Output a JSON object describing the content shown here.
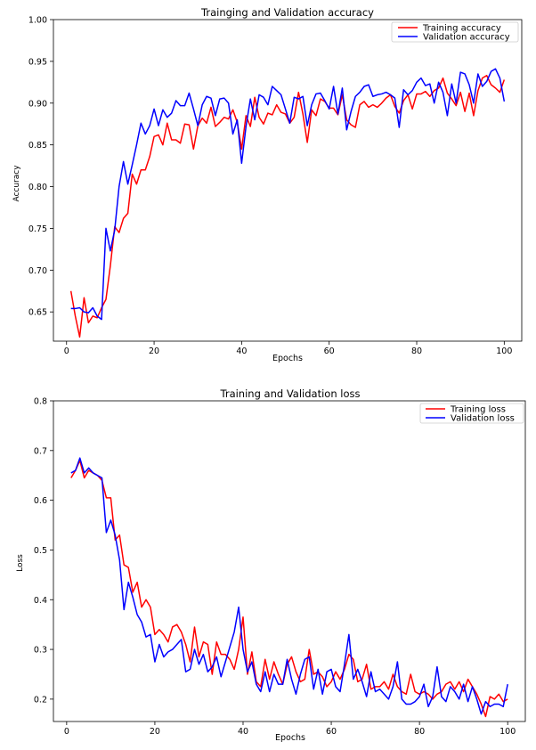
{
  "chart_data": [
    {
      "type": "line",
      "title": "Trainging and Validation accuracy",
      "xlabel": "Epochs",
      "ylabel": "Accuracy",
      "xlim": [
        -3,
        104
      ],
      "ylim": [
        0.615,
        1.0
      ],
      "x_ticks": [
        0,
        20,
        40,
        60,
        80,
        100
      ],
      "y_ticks": [
        0.65,
        0.7,
        0.75,
        0.8,
        0.85,
        0.9,
        0.95,
        1.0
      ],
      "x_tick_labels": [
        "0",
        "20",
        "40",
        "60",
        "80",
        "100"
      ],
      "y_tick_labels": [
        "0.65",
        "0.70",
        "0.75",
        "0.80",
        "0.85",
        "0.90",
        "0.95",
        "1.00"
      ],
      "grid": false,
      "legend_position": "top-right",
      "x": [
        1,
        2,
        3,
        4,
        5,
        6,
        7,
        8,
        9,
        10,
        11,
        12,
        13,
        14,
        15,
        16,
        17,
        18,
        19,
        20,
        21,
        22,
        23,
        24,
        25,
        26,
        27,
        28,
        29,
        30,
        31,
        32,
        33,
        34,
        35,
        36,
        37,
        38,
        39,
        40,
        41,
        42,
        43,
        44,
        45,
        46,
        47,
        48,
        49,
        50,
        51,
        52,
        53,
        54,
        55,
        56,
        57,
        58,
        59,
        60,
        61,
        62,
        63,
        64,
        65,
        66,
        67,
        68,
        69,
        70,
        71,
        72,
        73,
        74,
        75,
        76,
        77,
        78,
        79,
        80,
        81,
        82,
        83,
        84,
        85,
        86,
        87,
        88,
        89,
        90,
        91,
        92,
        93,
        94,
        95,
        96,
        97,
        98,
        99,
        100
      ],
      "series": [
        {
          "name": "Training accuracy",
          "color": "#ff0000",
          "values": [
            0.675,
            0.645,
            0.62,
            0.667,
            0.637,
            0.645,
            0.643,
            0.655,
            0.665,
            0.705,
            0.752,
            0.745,
            0.762,
            0.768,
            0.815,
            0.803,
            0.82,
            0.82,
            0.836,
            0.86,
            0.862,
            0.85,
            0.876,
            0.856,
            0.856,
            0.852,
            0.875,
            0.874,
            0.845,
            0.873,
            0.882,
            0.876,
            0.895,
            0.872,
            0.877,
            0.883,
            0.881,
            0.892,
            0.877,
            0.845,
            0.885,
            0.872,
            0.907,
            0.883,
            0.875,
            0.888,
            0.886,
            0.898,
            0.889,
            0.887,
            0.876,
            0.883,
            0.913,
            0.887,
            0.853,
            0.892,
            0.885,
            0.905,
            0.902,
            0.894,
            0.894,
            0.886,
            0.91,
            0.88,
            0.874,
            0.871,
            0.898,
            0.902,
            0.895,
            0.898,
            0.895,
            0.9,
            0.906,
            0.91,
            0.896,
            0.888,
            0.903,
            0.91,
            0.893,
            0.911,
            0.911,
            0.914,
            0.908,
            0.915,
            0.918,
            0.93,
            0.912,
            0.905,
            0.897,
            0.913,
            0.89,
            0.912,
            0.885,
            0.915,
            0.93,
            0.933,
            0.922,
            0.918,
            0.913,
            0.928
          ]
        },
        {
          "name": "Validation accuracy",
          "color": "#0000ff",
          "values": [
            0.654,
            0.654,
            0.655,
            0.65,
            0.649,
            0.655,
            0.645,
            0.641,
            0.75,
            0.723,
            0.748,
            0.8,
            0.83,
            0.803,
            0.826,
            0.85,
            0.876,
            0.863,
            0.873,
            0.893,
            0.873,
            0.892,
            0.883,
            0.888,
            0.903,
            0.897,
            0.897,
            0.912,
            0.893,
            0.873,
            0.898,
            0.908,
            0.906,
            0.885,
            0.905,
            0.906,
            0.9,
            0.863,
            0.88,
            0.828,
            0.872,
            0.905,
            0.88,
            0.91,
            0.907,
            0.898,
            0.92,
            0.915,
            0.91,
            0.893,
            0.876,
            0.907,
            0.905,
            0.908,
            0.873,
            0.898,
            0.911,
            0.912,
            0.903,
            0.893,
            0.92,
            0.887,
            0.918,
            0.868,
            0.89,
            0.908,
            0.913,
            0.92,
            0.922,
            0.908,
            0.91,
            0.911,
            0.913,
            0.91,
            0.906,
            0.871,
            0.916,
            0.91,
            0.915,
            0.925,
            0.93,
            0.921,
            0.923,
            0.9,
            0.925,
            0.913,
            0.885,
            0.923,
            0.9,
            0.937,
            0.935,
            0.922,
            0.9,
            0.935,
            0.92,
            0.926,
            0.938,
            0.941,
            0.93,
            0.902
          ]
        }
      ]
    },
    {
      "type": "line",
      "title": "Training and Validation loss",
      "xlabel": "Epochs",
      "ylabel": "Loss",
      "xlim": [
        -3,
        104
      ],
      "ylim": [
        0.155,
        0.8
      ],
      "x_ticks": [
        0,
        20,
        40,
        60,
        80,
        100
      ],
      "y_ticks": [
        0.2,
        0.3,
        0.4,
        0.5,
        0.6,
        0.7,
        0.8
      ],
      "x_tick_labels": [
        "0",
        "20",
        "40",
        "60",
        "80",
        "100"
      ],
      "y_tick_labels": [
        "0.2",
        "0.3",
        "0.4",
        "0.5",
        "0.6",
        "0.7",
        "0.8"
      ],
      "grid": false,
      "legend_position": "top-right",
      "x": [
        1,
        2,
        3,
        4,
        5,
        6,
        7,
        8,
        9,
        10,
        11,
        12,
        13,
        14,
        15,
        16,
        17,
        18,
        19,
        20,
        21,
        22,
        23,
        24,
        25,
        26,
        27,
        28,
        29,
        30,
        31,
        32,
        33,
        34,
        35,
        36,
        37,
        38,
        39,
        40,
        41,
        42,
        43,
        44,
        45,
        46,
        47,
        48,
        49,
        50,
        51,
        52,
        53,
        54,
        55,
        56,
        57,
        58,
        59,
        60,
        61,
        62,
        63,
        64,
        65,
        66,
        67,
        68,
        69,
        70,
        71,
        72,
        73,
        74,
        75,
        76,
        77,
        78,
        79,
        80,
        81,
        82,
        83,
        84,
        85,
        86,
        87,
        88,
        89,
        90,
        91,
        92,
        93,
        94,
        95,
        96,
        97,
        98,
        99,
        100
      ],
      "series": [
        {
          "name": "Training loss",
          "color": "#ff0000",
          "values": [
            0.645,
            0.66,
            0.68,
            0.645,
            0.66,
            0.655,
            0.65,
            0.64,
            0.605,
            0.605,
            0.52,
            0.53,
            0.47,
            0.465,
            0.415,
            0.435,
            0.385,
            0.4,
            0.385,
            0.33,
            0.34,
            0.33,
            0.315,
            0.345,
            0.35,
            0.335,
            0.31,
            0.275,
            0.345,
            0.285,
            0.315,
            0.31,
            0.25,
            0.315,
            0.29,
            0.29,
            0.28,
            0.26,
            0.3,
            0.365,
            0.25,
            0.295,
            0.235,
            0.225,
            0.28,
            0.24,
            0.275,
            0.25,
            0.23,
            0.27,
            0.285,
            0.255,
            0.235,
            0.24,
            0.3,
            0.25,
            0.255,
            0.245,
            0.225,
            0.235,
            0.255,
            0.24,
            0.26,
            0.29,
            0.28,
            0.235,
            0.24,
            0.27,
            0.22,
            0.225,
            0.225,
            0.235,
            0.22,
            0.25,
            0.225,
            0.215,
            0.21,
            0.25,
            0.215,
            0.21,
            0.215,
            0.21,
            0.2,
            0.21,
            0.215,
            0.23,
            0.235,
            0.22,
            0.235,
            0.215,
            0.24,
            0.225,
            0.21,
            0.19,
            0.165,
            0.205,
            0.2,
            0.21,
            0.195,
            0.2
          ]
        },
        {
          "name": "Validation loss",
          "color": "#0000ff",
          "values": [
            0.655,
            0.66,
            0.685,
            0.655,
            0.665,
            0.655,
            0.65,
            0.645,
            0.535,
            0.56,
            0.53,
            0.48,
            0.38,
            0.435,
            0.405,
            0.37,
            0.355,
            0.325,
            0.33,
            0.275,
            0.31,
            0.285,
            0.295,
            0.3,
            0.31,
            0.32,
            0.255,
            0.26,
            0.3,
            0.27,
            0.29,
            0.255,
            0.265,
            0.285,
            0.245,
            0.275,
            0.305,
            0.335,
            0.385,
            0.3,
            0.255,
            0.275,
            0.23,
            0.215,
            0.255,
            0.215,
            0.25,
            0.23,
            0.23,
            0.28,
            0.24,
            0.21,
            0.25,
            0.28,
            0.285,
            0.22,
            0.26,
            0.21,
            0.255,
            0.26,
            0.225,
            0.215,
            0.27,
            0.33,
            0.24,
            0.26,
            0.235,
            0.205,
            0.255,
            0.215,
            0.22,
            0.21,
            0.2,
            0.225,
            0.275,
            0.2,
            0.19,
            0.19,
            0.195,
            0.205,
            0.23,
            0.185,
            0.205,
            0.265,
            0.205,
            0.195,
            0.225,
            0.215,
            0.2,
            0.23,
            0.195,
            0.225,
            0.2,
            0.17,
            0.195,
            0.185,
            0.19,
            0.19,
            0.185,
            0.23
          ]
        }
      ]
    }
  ]
}
